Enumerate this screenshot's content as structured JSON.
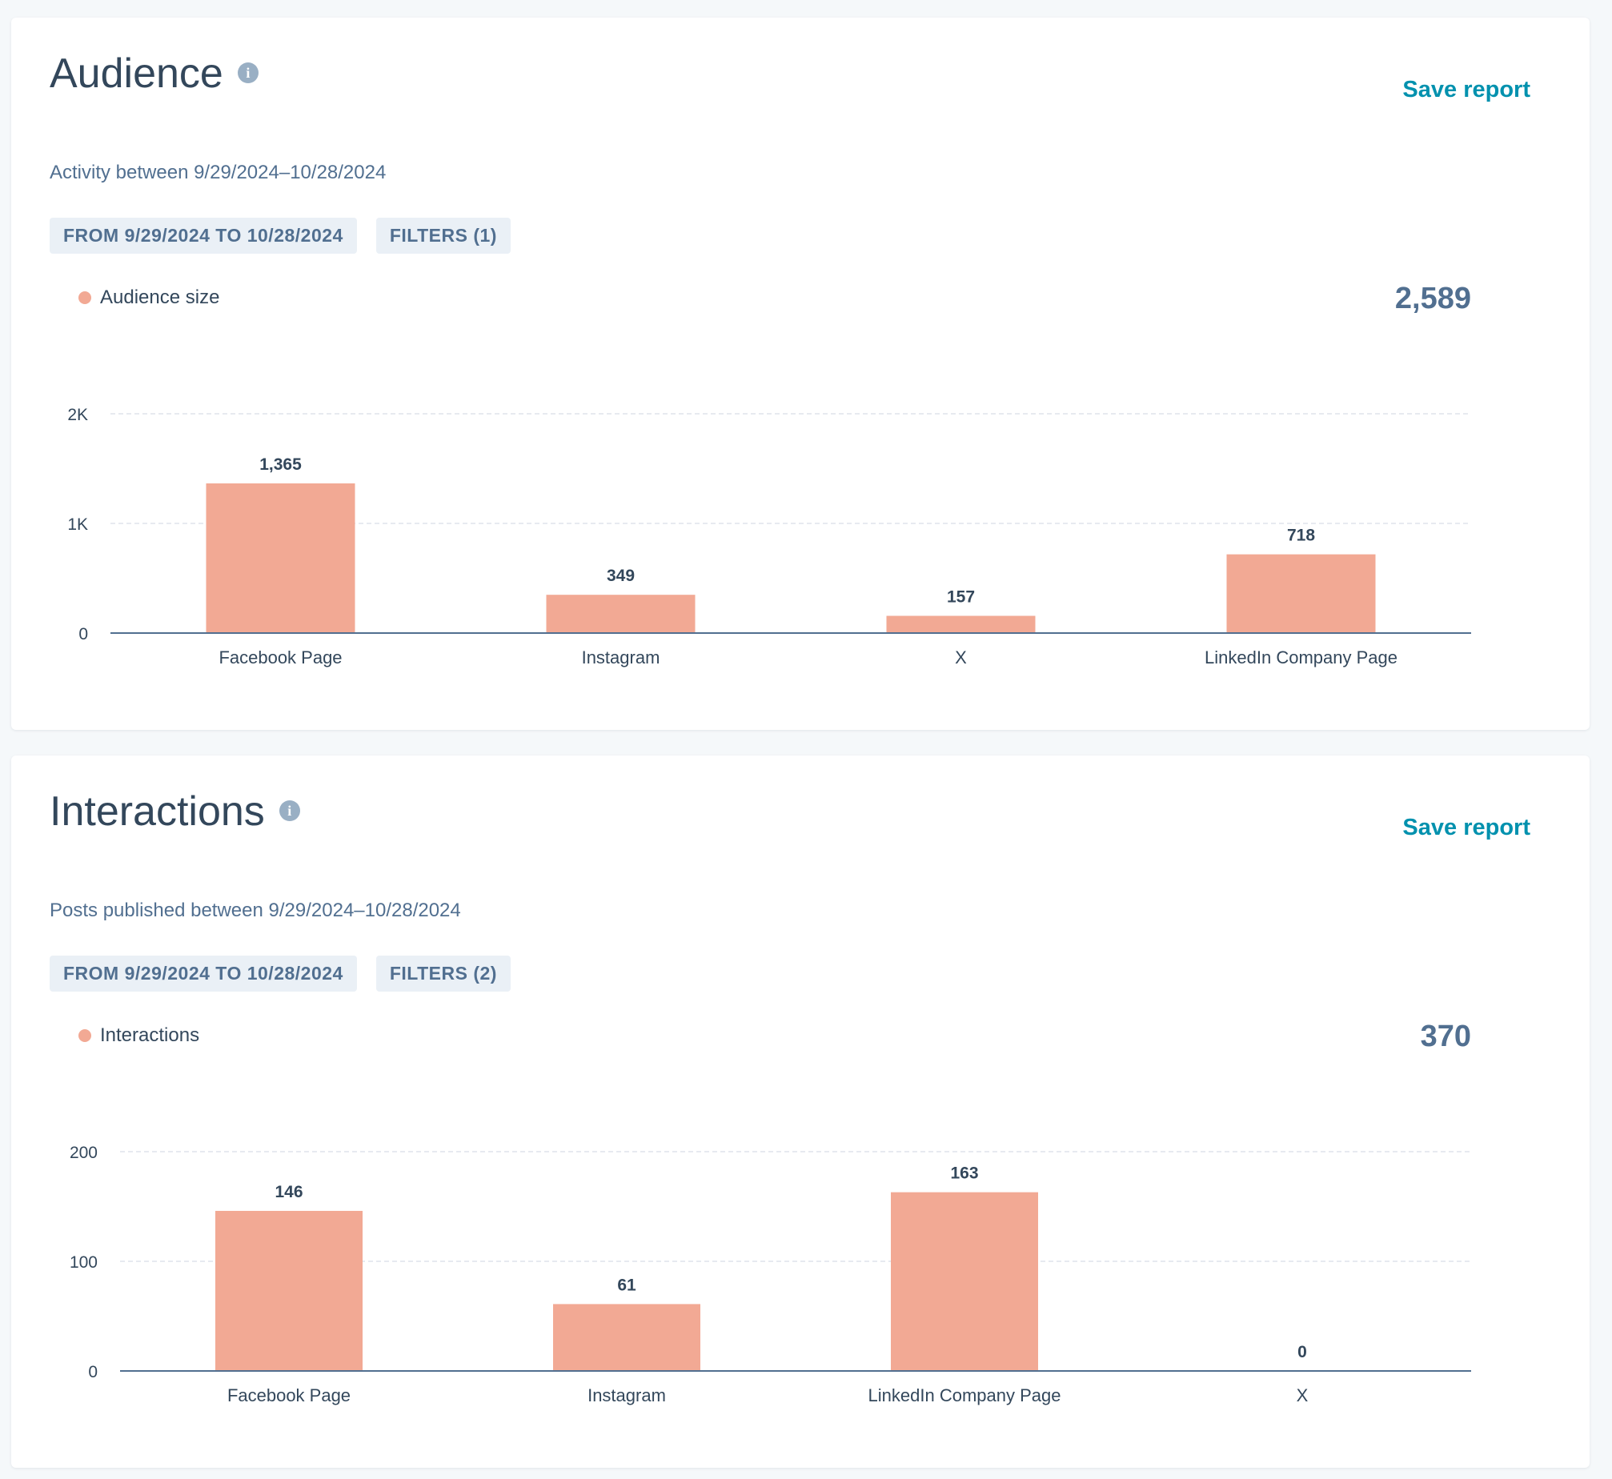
{
  "colors": {
    "bar": "#f2a994",
    "link": "#0091ae",
    "axis": "#516f90",
    "grid": "#dfe3eb"
  },
  "icons": {
    "info": "i"
  },
  "audience": {
    "title": "Audience",
    "save_label": "Save report",
    "subtitle": "Activity between 9/29/2024–10/28/2024",
    "chips": [
      "FROM 9/29/2024 TO 10/28/2024",
      "FILTERS (1)"
    ],
    "legend": "Audience size",
    "total": "2,589",
    "chart_data": {
      "type": "bar",
      "categories": [
        "Facebook Page",
        "Instagram",
        "X",
        "LinkedIn Company Page"
      ],
      "values": [
        1365,
        349,
        157,
        718
      ],
      "value_labels": [
        "1,365",
        "349",
        "157",
        "718"
      ],
      "yticks": [
        0,
        1000,
        2000
      ],
      "ytick_labels": [
        "0",
        "1K",
        "2K"
      ],
      "ylim": [
        0,
        2000
      ],
      "grid": true
    }
  },
  "interactions": {
    "title": "Interactions",
    "save_label": "Save report",
    "subtitle": "Posts published between 9/29/2024–10/28/2024",
    "chips": [
      "FROM 9/29/2024 TO 10/28/2024",
      "FILTERS (2)"
    ],
    "legend": "Interactions",
    "total": "370",
    "chart_data": {
      "type": "bar",
      "categories": [
        "Facebook Page",
        "Instagram",
        "LinkedIn Company Page",
        "X"
      ],
      "values": [
        146,
        61,
        163,
        0
      ],
      "value_labels": [
        "146",
        "61",
        "163",
        "0"
      ],
      "yticks": [
        0,
        100,
        200
      ],
      "ytick_labels": [
        "0",
        "100",
        "200"
      ],
      "ylim": [
        0,
        200
      ],
      "grid": true
    }
  }
}
